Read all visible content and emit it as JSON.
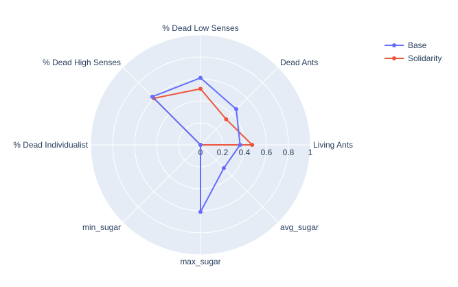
{
  "chart_data": {
    "type": "radar",
    "axes": [
      "Living Ants",
      "Dead Ants",
      "% Dead Low Senses",
      "% Dead High Senses",
      "% Dead Individualist",
      "min_sugar",
      "max_sugar",
      "avg_sugar"
    ],
    "radial_ticks": [
      "0",
      "0.2",
      "0.4",
      "0.6",
      "0.8",
      "1"
    ],
    "rlim": [
      0,
      1
    ],
    "grid": true,
    "legend_position": "top-right",
    "series": [
      {
        "name": "Base",
        "color": "#636efa",
        "values": [
          0.36,
          0.46,
          0.61,
          0.62,
          0.0,
          0.0,
          0.61,
          0.3
        ]
      },
      {
        "name": "Solidarity",
        "color": "#ef553b",
        "values": [
          0.47,
          0.33,
          0.51,
          0.6,
          0.0,
          0.0,
          0.0,
          0.0
        ]
      }
    ]
  },
  "colors": {
    "polar_bg": "#e5ecf6",
    "grid": "#ffffff",
    "text": "#2a3f5f"
  }
}
